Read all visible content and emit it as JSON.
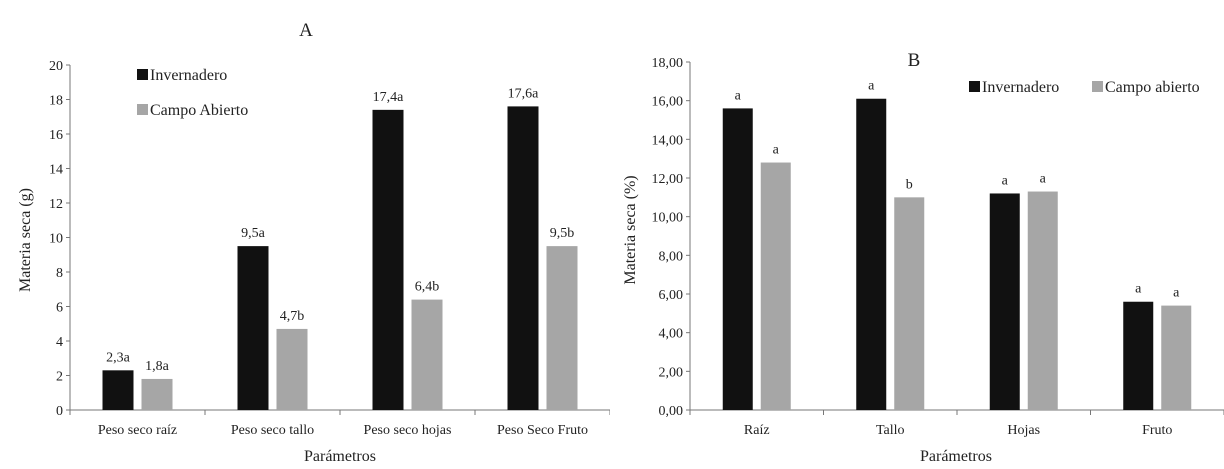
{
  "colors": {
    "invernadero": "#111111",
    "campo": "#a6a6a6",
    "axis": "#777777"
  },
  "chart_data": [
    {
      "type": "bar",
      "title": "A",
      "xlabel": "Parámetros",
      "ylabel": "Materia seca (g)",
      "ylim": [
        0,
        20
      ],
      "ytick_step": 2,
      "ytick_labels": [
        "0",
        "2",
        "4",
        "6",
        "8",
        "10",
        "12",
        "14",
        "16",
        "18",
        "20"
      ],
      "grid": false,
      "legend_position": "top-left",
      "categories": [
        "Peso seco raíz",
        "Peso seco tallo",
        "Peso seco hojas",
        "Peso Seco Fruto"
      ],
      "series": [
        {
          "name": "Invernadero",
          "values": [
            2.3,
            9.5,
            17.4,
            17.6
          ],
          "labels": [
            "2,3a",
            "9,5a",
            "17,4a",
            "17,6a"
          ]
        },
        {
          "name": "Campo Abierto",
          "values": [
            1.8,
            4.7,
            6.4,
            9.5
          ],
          "labels": [
            "1,8a",
            "4,7b",
            "6,4b",
            "9,5b"
          ]
        }
      ]
    },
    {
      "type": "bar",
      "title": "B",
      "xlabel": "Parámetros",
      "ylabel": "Materia seca (%)",
      "ylim": [
        0,
        18
      ],
      "ytick_step": 2,
      "ytick_labels": [
        "0,00",
        "2,00",
        "4,00",
        "6,00",
        "8,00",
        "10,00",
        "12,00",
        "14,00",
        "16,00",
        "18,00"
      ],
      "grid": false,
      "legend_position": "top-right",
      "categories": [
        "Raíz",
        "Tallo",
        "Hojas",
        "Fruto"
      ],
      "series": [
        {
          "name": "Invernadero",
          "values": [
            15.6,
            16.1,
            11.2,
            5.6
          ],
          "labels": [
            "a",
            "a",
            "a",
            "a"
          ]
        },
        {
          "name": "Campo abierto",
          "values": [
            12.8,
            11.0,
            11.3,
            5.4
          ],
          "labels": [
            "a",
            "b",
            "a",
            "a"
          ]
        }
      ]
    }
  ]
}
